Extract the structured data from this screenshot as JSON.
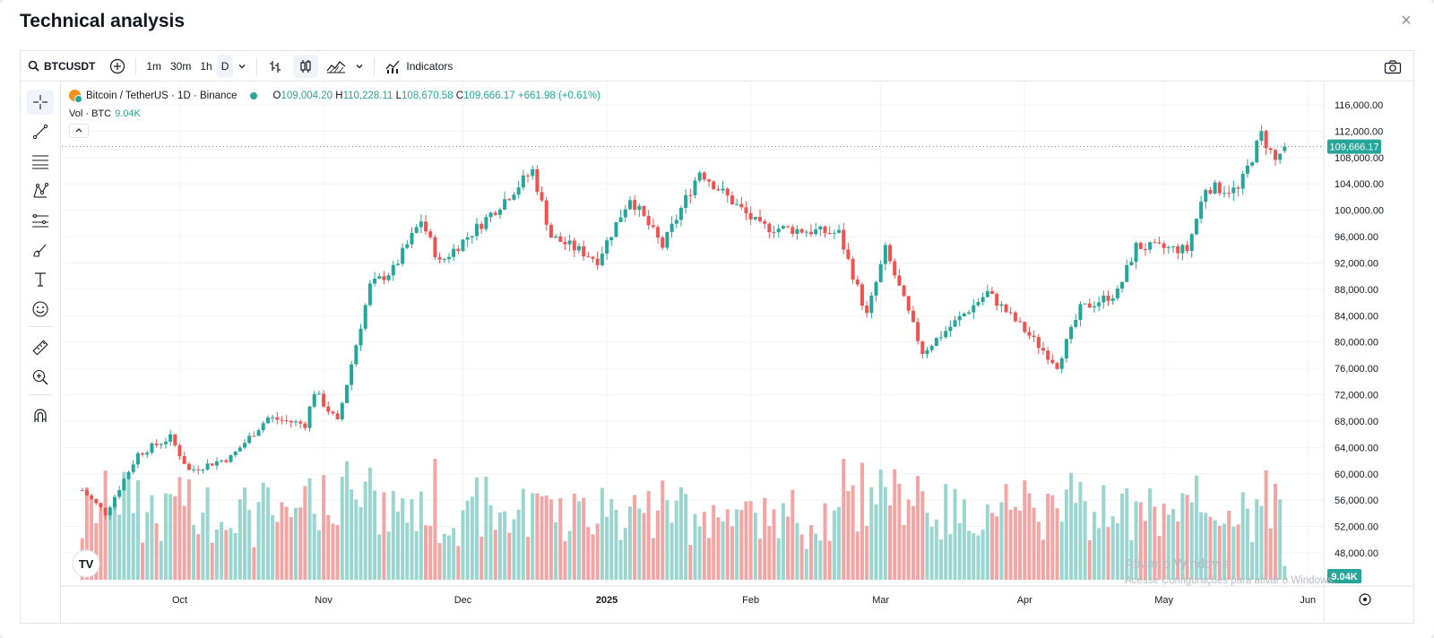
{
  "dialog": {
    "title": "Technical analysis",
    "close_icon": "×"
  },
  "toolbar": {
    "symbol": "BTCUSDT",
    "intervals": [
      "1m",
      "30m",
      "1h",
      "D"
    ],
    "active_interval": "D",
    "indicators_label": "Indicators"
  },
  "legend": {
    "title": "Bitcoin / TetherUS · 1D · Binance",
    "o_label": "O",
    "o": "109,004.20",
    "h_label": "H",
    "h": "110,228.11",
    "l_label": "L",
    "l": "108,670.58",
    "c_label": "C",
    "c": "109,666.17",
    "change": "+661.98 (+0.61%)",
    "vol_label": "Vol · BTC",
    "vol": "9.04K"
  },
  "price_axis": {
    "labels": [
      "116,000.00",
      "112,000.00",
      "108,000.00",
      "104,000.00",
      "100,000.00",
      "96,000.00",
      "92,000.00",
      "88,000.00",
      "84,000.00",
      "80,000.00",
      "76,000.00",
      "72,000.00",
      "68,000.00",
      "64,000.00",
      "60,000.00",
      "56,000.00",
      "52,000.00",
      "48,000.00"
    ],
    "current_price": "109,666.17",
    "current_volume": "9.04K"
  },
  "time_axis": {
    "labels": [
      "Oct",
      "Nov",
      "Dec",
      "2025",
      "Feb",
      "Mar",
      "Apr",
      "May",
      "Jun"
    ]
  },
  "colors": {
    "up": "#26a69a",
    "down": "#ef5350",
    "up_vol": "#9ad6cf",
    "down_vol": "#f3a5a4"
  },
  "chart_data": {
    "type": "candlestick",
    "title": "Bitcoin / TetherUS · 1D · Binance",
    "y_range": [
      48000,
      116000
    ],
    "keypoints": [
      {
        "t": "2024-09-10",
        "price": 57500
      },
      {
        "t": "2024-09-15",
        "price": 54000
      },
      {
        "t": "2024-09-22",
        "price": 63000
      },
      {
        "t": "2024-09-29",
        "price": 65500
      },
      {
        "t": "2024-10-03",
        "price": 60500
      },
      {
        "t": "2024-10-12",
        "price": 62500
      },
      {
        "t": "2024-10-20",
        "price": 68500
      },
      {
        "t": "2024-10-28",
        "price": 67500
      },
      {
        "t": "2024-10-30",
        "price": 72500
      },
      {
        "t": "2024-11-04",
        "price": 67800
      },
      {
        "t": "2024-11-11",
        "price": 88500
      },
      {
        "t": "2024-11-16",
        "price": 91000
      },
      {
        "t": "2024-11-22",
        "price": 98500
      },
      {
        "t": "2024-11-26",
        "price": 92000
      },
      {
        "t": "2024-12-05",
        "price": 98000
      },
      {
        "t": "2024-12-16",
        "price": 106000
      },
      {
        "t": "2024-12-20",
        "price": 96000
      },
      {
        "t": "2024-12-30",
        "price": 92500
      },
      {
        "t": "2025-01-06",
        "price": 102000
      },
      {
        "t": "2025-01-13",
        "price": 94500
      },
      {
        "t": "2025-01-21",
        "price": 106000
      },
      {
        "t": "2025-01-27",
        "price": 102000
      },
      {
        "t": "2025-02-03",
        "price": 97500
      },
      {
        "t": "2025-02-20",
        "price": 96500
      },
      {
        "t": "2025-02-26",
        "price": 84000
      },
      {
        "t": "2025-03-02",
        "price": 94000
      },
      {
        "t": "2025-03-10",
        "price": 78500
      },
      {
        "t": "2025-03-24",
        "price": 87500
      },
      {
        "t": "2025-03-31",
        "price": 82500
      },
      {
        "t": "2025-04-08",
        "price": 76500
      },
      {
        "t": "2025-04-13",
        "price": 85000
      },
      {
        "t": "2025-04-21",
        "price": 87500
      },
      {
        "t": "2025-04-25",
        "price": 94500
      },
      {
        "t": "2025-05-06",
        "price": 94000
      },
      {
        "t": "2025-05-10",
        "price": 103500
      },
      {
        "t": "2025-05-17",
        "price": 103000
      },
      {
        "t": "2025-05-22",
        "price": 111500
      },
      {
        "t": "2025-05-25",
        "price": 107500
      },
      {
        "t": "2025-05-27",
        "price": 109666
      }
    ]
  },
  "watermark": {
    "line1": "Ativar o Windows",
    "line2": "Acesse Configurações para ativar o Windows."
  }
}
